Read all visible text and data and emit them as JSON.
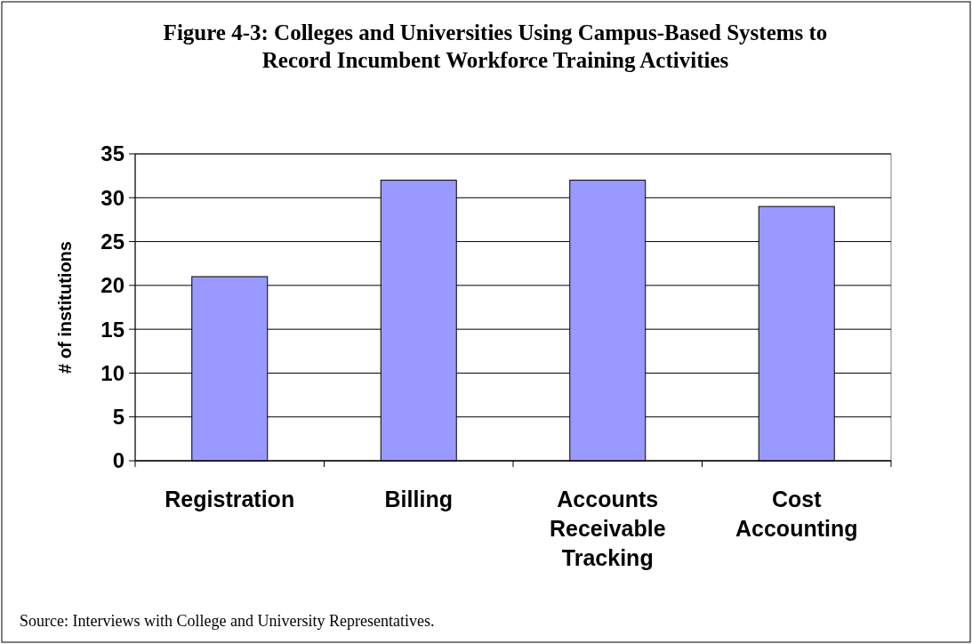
{
  "chart_data": {
    "type": "bar",
    "title": "Figure 4-3: Colleges and Universities Using Campus-Based Systems to Record Incumbent Workforce Training Activities",
    "categories": [
      "Registration",
      "Billing",
      "Accounts Receivable Tracking",
      "Cost Accounting"
    ],
    "values": [
      21,
      32,
      32,
      29
    ],
    "color": "#9999ff",
    "ylabel": "# of institutions",
    "ylim": [
      0,
      35
    ],
    "yticks": [
      0,
      5,
      10,
      15,
      20,
      25,
      30,
      35
    ],
    "grid": "y",
    "annotations": [
      "Source:  Interviews with College and University Representatives."
    ]
  }
}
